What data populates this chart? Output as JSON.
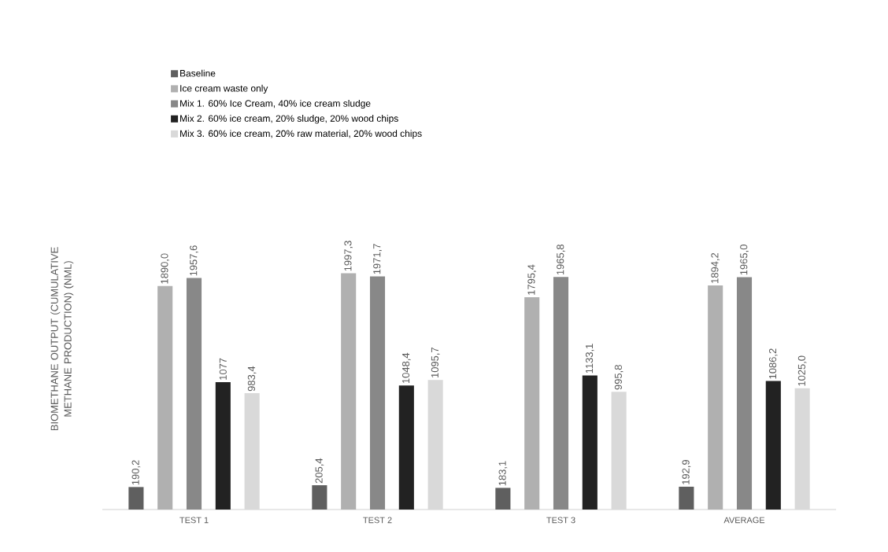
{
  "chart_data": {
    "type": "bar",
    "ylabel": "BIOMETHANE OUTPUT (CUMULATIVE METHANE PRODUCTION) (NML)",
    "categories": [
      "TEST 1",
      "TEST 2",
      "TEST 3",
      "AVERAGE"
    ],
    "legend": "top",
    "data_labels": true,
    "series": [
      {
        "name": "Baseline",
        "color": "#5f5f5f",
        "values": [
          190.2,
          205.4,
          183.1,
          192.9
        ],
        "value_labels": [
          "190,2",
          "205,4",
          "183,1",
          "192,9"
        ]
      },
      {
        "name": "Ice cream waste only",
        "color": "#b0b0b0",
        "values": [
          1890.0,
          1997.3,
          1795.4,
          1894.2
        ],
        "value_labels": [
          "1890,0",
          "1997,3",
          "1795,4",
          "1894,2"
        ]
      },
      {
        "name": "Mix 1. 60% Ice Cream, 40% ice cream sludge",
        "color": "#888888",
        "values": [
          1957.6,
          1971.7,
          1965.8,
          1965.0
        ],
        "value_labels": [
          "1957,6",
          "1971,7",
          "1965,8",
          "1965,0"
        ]
      },
      {
        "name": "Mix 2. 60% ice cream, 20% sludge, 20% wood chips",
        "color": "#222222",
        "values": [
          1077,
          1048.4,
          1133.1,
          1086.2
        ],
        "value_labels": [
          "1077",
          "1048,4",
          "1133,1",
          "1086,2"
        ]
      },
      {
        "name": "Mix 3. 60% ice cream, 20% raw material, 20% wood chips",
        "color": "#d9d9d9",
        "values": [
          983.4,
          1095.7,
          995.8,
          1025.0
        ],
        "value_labels": [
          "983,4",
          "1095,7",
          "995,8",
          "1025,0"
        ]
      }
    ]
  }
}
